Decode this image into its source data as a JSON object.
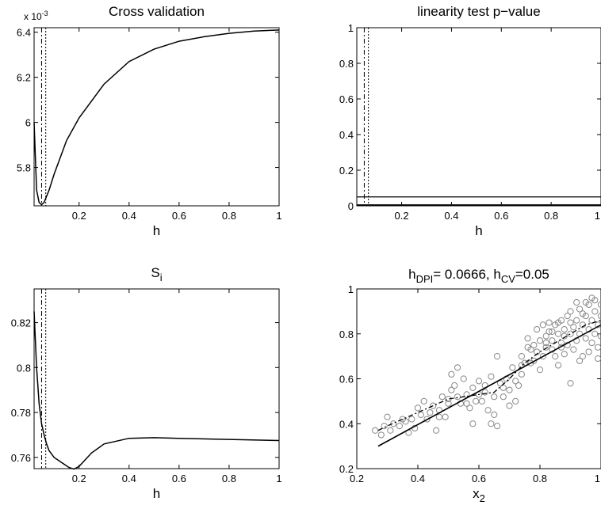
{
  "chart_data": [
    {
      "type": "line",
      "title": "Cross validation",
      "xlabel": "h",
      "ylabel": "",
      "y_multiplier": "x 10",
      "y_multiplier_exp": "-3",
      "xlim": [
        0.02,
        1.0
      ],
      "ylim": [
        5.63,
        6.42
      ],
      "xticks": [
        0.2,
        0.4,
        0.6,
        0.8,
        1
      ],
      "xtick_labels": [
        "0.2",
        "0.4",
        "0.6",
        "0.8",
        "1"
      ],
      "yticks": [
        5.8,
        6.0,
        6.2,
        6.4
      ],
      "ytick_labels": [
        "5.8",
        "6",
        "6.2",
        "6.4"
      ],
      "vlines": [
        {
          "x": 0.05,
          "style": "dashdot"
        },
        {
          "x": 0.0666,
          "style": "dotted"
        }
      ],
      "series": [
        {
          "name": "",
          "x": [
            0.02,
            0.03,
            0.04,
            0.05,
            0.06,
            0.08,
            0.1,
            0.15,
            0.2,
            0.3,
            0.4,
            0.5,
            0.6,
            0.7,
            0.8,
            0.9,
            1.0
          ],
          "y": [
            6.0,
            5.7,
            5.645,
            5.635,
            5.645,
            5.7,
            5.77,
            5.92,
            6.02,
            6.17,
            6.27,
            6.325,
            6.36,
            6.38,
            6.395,
            6.405,
            6.41
          ]
        }
      ]
    },
    {
      "type": "line",
      "title": "linearity test p−value",
      "xlabel": "h",
      "ylabel": "",
      "xlim": [
        0.02,
        1.0
      ],
      "ylim": [
        0,
        1.0
      ],
      "xticks": [
        0.2,
        0.4,
        0.6,
        0.8,
        1
      ],
      "xtick_labels": [
        "0.2",
        "0.4",
        "0.6",
        "0.8",
        "1"
      ],
      "yticks": [
        0,
        0.2,
        0.4,
        0.6,
        0.8,
        1
      ],
      "ytick_labels": [
        "0",
        "0.2",
        "0.4",
        "0.6",
        "0.8",
        "1"
      ],
      "vlines": [
        {
          "x": 0.05,
          "style": "dashdot"
        },
        {
          "x": 0.0666,
          "style": "dotted"
        }
      ],
      "hlines": [
        {
          "y": 0.05,
          "style": "solid"
        }
      ],
      "series": [
        {
          "name": "",
          "x": [
            0.02,
            1.0
          ],
          "y": [
            0.005,
            0.005
          ]
        }
      ]
    },
    {
      "type": "line",
      "title": "S",
      "title_sub": "i",
      "xlabel": "h",
      "ylabel": "",
      "xlim": [
        0.02,
        1.0
      ],
      "ylim": [
        0.755,
        0.835
      ],
      "xticks": [
        0.2,
        0.4,
        0.6,
        0.8,
        1
      ],
      "xtick_labels": [
        "0.2",
        "0.4",
        "0.6",
        "0.8",
        "1"
      ],
      "yticks": [
        0.76,
        0.78,
        0.8,
        0.82
      ],
      "ytick_labels": [
        "0.76",
        "0.78",
        "0.8",
        "0.82"
      ],
      "vlines": [
        {
          "x": 0.05,
          "style": "dashdot"
        },
        {
          "x": 0.0666,
          "style": "dotted"
        }
      ],
      "series": [
        {
          "name": "",
          "x": [
            0.02,
            0.03,
            0.04,
            0.05,
            0.06,
            0.07,
            0.08,
            0.1,
            0.12,
            0.14,
            0.16,
            0.18,
            0.2,
            0.25,
            0.3,
            0.4,
            0.5,
            0.6,
            0.8,
            1.0
          ],
          "y": [
            0.825,
            0.8,
            0.784,
            0.775,
            0.77,
            0.766,
            0.763,
            0.76,
            0.7585,
            0.757,
            0.7555,
            0.7548,
            0.756,
            0.762,
            0.766,
            0.7685,
            0.7688,
            0.7685,
            0.768,
            0.7675
          ]
        }
      ]
    },
    {
      "type": "scatter",
      "title_parts": [
        "h",
        "DPI",
        "= 0.0666, h",
        "CV",
        "=0.05"
      ],
      "xlabel": "x",
      "xlabel_sub": "2",
      "ylabel": "",
      "xlim": [
        0.2,
        1.0
      ],
      "ylim": [
        0.2,
        1.0
      ],
      "xticks": [
        0.2,
        0.4,
        0.6,
        0.8,
        1
      ],
      "xtick_labels": [
        "0.2",
        "0.4",
        "0.6",
        "0.8",
        "1"
      ],
      "yticks": [
        0.2,
        0.4,
        0.6,
        0.8,
        1
      ],
      "ytick_labels": [
        "0.2",
        "0.4",
        "0.6",
        "0.8",
        "1"
      ],
      "fit_linear": {
        "x": [
          0.27,
          1.0
        ],
        "y": [
          0.3,
          0.84
        ]
      },
      "fit_local": {
        "x": [
          0.27,
          0.3,
          0.35,
          0.4,
          0.45,
          0.5,
          0.55,
          0.6,
          0.65,
          0.7,
          0.75,
          0.8,
          0.85,
          0.9,
          0.95,
          1.0
        ],
        "y": [
          0.37,
          0.39,
          0.42,
          0.45,
          0.48,
          0.51,
          0.52,
          0.53,
          0.54,
          0.6,
          0.67,
          0.72,
          0.76,
          0.8,
          0.84,
          0.86
        ]
      },
      "points": [
        [
          0.26,
          0.37
        ],
        [
          0.28,
          0.35
        ],
        [
          0.29,
          0.39
        ],
        [
          0.3,
          0.43
        ],
        [
          0.32,
          0.4
        ],
        [
          0.34,
          0.39
        ],
        [
          0.36,
          0.41
        ],
        [
          0.37,
          0.36
        ],
        [
          0.38,
          0.42
        ],
        [
          0.4,
          0.47
        ],
        [
          0.41,
          0.44
        ],
        [
          0.42,
          0.5
        ],
        [
          0.44,
          0.45
        ],
        [
          0.45,
          0.48
        ],
        [
          0.46,
          0.37
        ],
        [
          0.47,
          0.46
        ],
        [
          0.48,
          0.52
        ],
        [
          0.49,
          0.43
        ],
        [
          0.5,
          0.49
        ],
        [
          0.51,
          0.55
        ],
        [
          0.51,
          0.62
        ],
        [
          0.52,
          0.57
        ],
        [
          0.53,
          0.65
        ],
        [
          0.54,
          0.49
        ],
        [
          0.55,
          0.6
        ],
        [
          0.56,
          0.53
        ],
        [
          0.57,
          0.47
        ],
        [
          0.58,
          0.56
        ],
        [
          0.58,
          0.4
        ],
        [
          0.6,
          0.59
        ],
        [
          0.6,
          0.53
        ],
        [
          0.61,
          0.5
        ],
        [
          0.62,
          0.57
        ],
        [
          0.63,
          0.46
        ],
        [
          0.64,
          0.61
        ],
        [
          0.64,
          0.4
        ],
        [
          0.65,
          0.44
        ],
        [
          0.66,
          0.39
        ],
        [
          0.66,
          0.7
        ],
        [
          0.67,
          0.58
        ],
        [
          0.68,
          0.52
        ],
        [
          0.69,
          0.6
        ],
        [
          0.7,
          0.48
        ],
        [
          0.7,
          0.55
        ],
        [
          0.71,
          0.65
        ],
        [
          0.72,
          0.5
        ],
        [
          0.73,
          0.57
        ],
        [
          0.74,
          0.62
        ],
        [
          0.74,
          0.7
        ],
        [
          0.75,
          0.67
        ],
        [
          0.76,
          0.78
        ],
        [
          0.77,
          0.73
        ],
        [
          0.78,
          0.75
        ],
        [
          0.78,
          0.68
        ],
        [
          0.79,
          0.72
        ],
        [
          0.8,
          0.64
        ],
        [
          0.8,
          0.77
        ],
        [
          0.81,
          0.7
        ],
        [
          0.82,
          0.79
        ],
        [
          0.82,
          0.74
        ],
        [
          0.83,
          0.81
        ],
        [
          0.83,
          0.85
        ],
        [
          0.84,
          0.73
        ],
        [
          0.84,
          0.77
        ],
        [
          0.85,
          0.84
        ],
        [
          0.85,
          0.7
        ],
        [
          0.86,
          0.8
        ],
        [
          0.86,
          0.66
        ],
        [
          0.87,
          0.76
        ],
        [
          0.87,
          0.74
        ],
        [
          0.88,
          0.82
        ],
        [
          0.88,
          0.79
        ],
        [
          0.89,
          0.88
        ],
        [
          0.89,
          0.75
        ],
        [
          0.9,
          0.8
        ],
        [
          0.9,
          0.9
        ],
        [
          0.9,
          0.58
        ],
        [
          0.91,
          0.83
        ],
        [
          0.91,
          0.73
        ],
        [
          0.92,
          0.86
        ],
        [
          0.92,
          0.77
        ],
        [
          0.93,
          0.91
        ],
        [
          0.93,
          0.8
        ],
        [
          0.94,
          0.84
        ],
        [
          0.94,
          0.7
        ],
        [
          0.95,
          0.88
        ],
        [
          0.95,
          0.78
        ],
        [
          0.96,
          0.93
        ],
        [
          0.96,
          0.82
        ],
        [
          0.97,
          0.86
        ],
        [
          0.97,
          0.76
        ],
        [
          0.98,
          0.9
        ],
        [
          0.98,
          0.8
        ],
        [
          0.98,
          0.95
        ],
        [
          0.99,
          0.84
        ],
        [
          0.99,
          0.74
        ],
        [
          1.0,
          0.88
        ],
        [
          1.0,
          0.79
        ],
        [
          1.0,
          0.93
        ],
        [
          0.95,
          0.94
        ],
        [
          0.96,
          0.72
        ],
        [
          0.97,
          0.96
        ],
        [
          0.99,
          0.69
        ],
        [
          0.93,
          0.68
        ],
        [
          0.88,
          0.71
        ],
        [
          0.86,
          0.85
        ],
        [
          0.81,
          0.84
        ],
        [
          0.79,
          0.82
        ],
        [
          0.77,
          0.67
        ],
        [
          0.72,
          0.59
        ],
        [
          0.68,
          0.56
        ],
        [
          0.65,
          0.52
        ],
        [
          0.62,
          0.54
        ],
        [
          0.59,
          0.5
        ],
        [
          0.56,
          0.49
        ],
        [
          0.53,
          0.52
        ],
        [
          0.5,
          0.51
        ],
        [
          0.47,
          0.43
        ],
        [
          0.43,
          0.42
        ],
        [
          0.39,
          0.38
        ],
        [
          0.35,
          0.42
        ],
        [
          0.31,
          0.37
        ],
        [
          0.92,
          0.94
        ],
        [
          0.94,
          0.89
        ],
        [
          0.9,
          0.85
        ],
        [
          0.87,
          0.86
        ],
        [
          0.84,
          0.81
        ],
        [
          0.82,
          0.76
        ],
        [
          0.76,
          0.74
        ],
        [
          0.74,
          0.66
        ]
      ]
    }
  ]
}
